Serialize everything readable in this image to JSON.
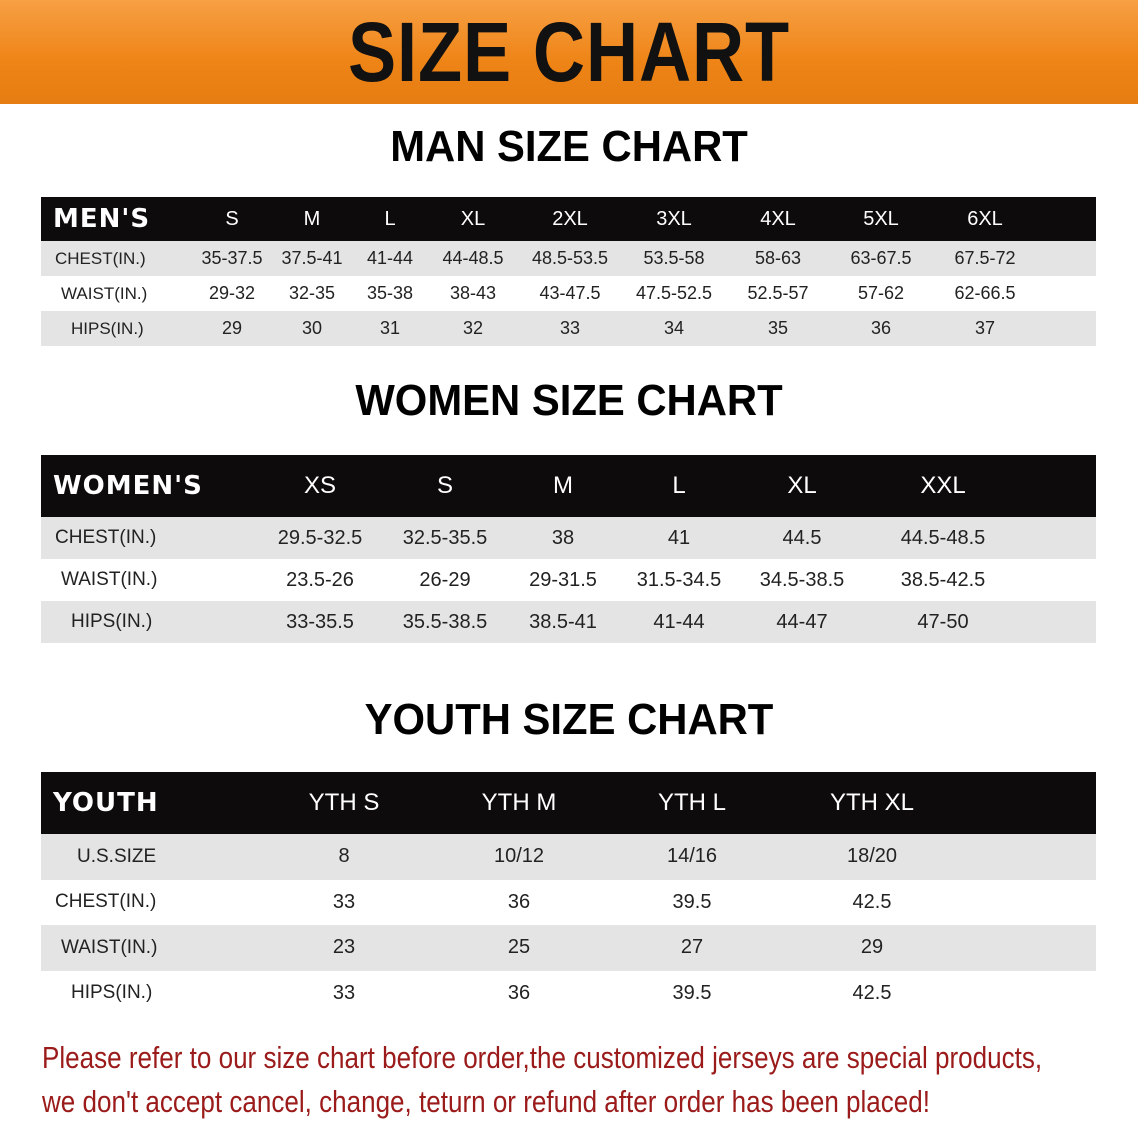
{
  "banner": {
    "title": "SIZE CHART",
    "color": "#ee8416"
  },
  "men": {
    "title": "MAN SIZE CHART",
    "corner": "MEN'S",
    "sizes": [
      "S",
      "M",
      "L",
      "XL",
      "2XL",
      "3XL",
      "4XL",
      "5XL",
      "6XL"
    ],
    "rows": [
      {
        "label": "CHEST(IN.)",
        "values": [
          "35-37.5",
          "37.5-41",
          "41-44",
          "44-48.5",
          "48.5-53.5",
          "53.5-58",
          "58-63",
          "63-67.5",
          "67.5-72"
        ]
      },
      {
        "label": "WAIST(IN.)",
        "values": [
          "29-32",
          "32-35",
          "35-38",
          "38-43",
          "43-47.5",
          "47.5-52.5",
          "52.5-57",
          "57-62",
          "62-66.5"
        ]
      },
      {
        "label": "HIPS(IN.)",
        "values": [
          "29",
          "30",
          "31",
          "32",
          "33",
          "34",
          "35",
          "36",
          "37"
        ]
      }
    ]
  },
  "women": {
    "title": "WOMEN SIZE CHART",
    "corner": "WOMEN'S",
    "sizes": [
      "XS",
      "S",
      "M",
      "L",
      "XL",
      "XXL"
    ],
    "rows": [
      {
        "label": "CHEST(IN.)",
        "values": [
          "29.5-32.5",
          "32.5-35.5",
          "38",
          "41",
          "44.5",
          "44.5-48.5"
        ]
      },
      {
        "label": "WAIST(IN.)",
        "values": [
          "23.5-26",
          "26-29",
          "29-31.5",
          "31.5-34.5",
          "34.5-38.5",
          "38.5-42.5"
        ]
      },
      {
        "label": "HIPS(IN.)",
        "values": [
          "33-35.5",
          "35.5-38.5",
          "38.5-41",
          "41-44",
          "44-47",
          "47-50"
        ]
      }
    ]
  },
  "youth": {
    "title": "YOUTH SIZE CHART",
    "corner": "YOUTH",
    "sizes": [
      "YTH S",
      "YTH M",
      "YTH L",
      "YTH XL"
    ],
    "rows": [
      {
        "label": "U.S.SIZE",
        "values": [
          "8",
          "10/12",
          "14/16",
          "18/20"
        ]
      },
      {
        "label": "CHEST(IN.)",
        "values": [
          "33",
          "36",
          "39.5",
          "42.5"
        ]
      },
      {
        "label": "WAIST(IN.)",
        "values": [
          "23",
          "25",
          "27",
          "29"
        ]
      },
      {
        "label": "HIPS(IN.)",
        "values": [
          "33",
          "36",
          "39.5",
          "42.5"
        ]
      }
    ]
  },
  "notice": {
    "line1": "Please refer to our size chart before order,the customized jerseys are special products,",
    "line2": "we don't accept cancel, change, teturn or refund after order has been placed!",
    "color": "#9b1b1b"
  }
}
